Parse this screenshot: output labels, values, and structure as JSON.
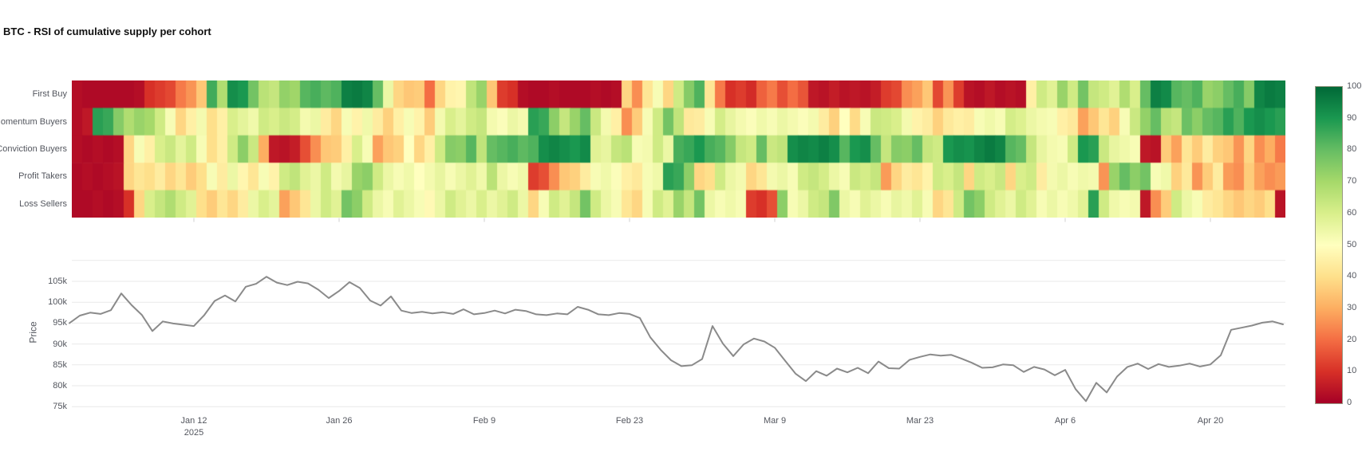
{
  "title": "BTC - RSI of cumulative supply per cohort",
  "colors": {
    "colormap_name": "RdYlGn",
    "colormap_stops": [
      "#a50026",
      "#d73027",
      "#f46d43",
      "#fdae61",
      "#fee08b",
      "#ffffbf",
      "#d9ef8b",
      "#a6d96a",
      "#66bd63",
      "#1a9850",
      "#006837"
    ],
    "price_line": "#8a8a8a",
    "gridline": "#e9e9e9",
    "axis_text": "#53565e",
    "title_text": "#111111"
  },
  "heatmap": {
    "cohorts": [
      "First Buy",
      "Momentum Buyers",
      "Conviction Buyers",
      "Profit Takers",
      "Loss Sellers"
    ]
  },
  "colorbar": {
    "min": 0,
    "max": 100,
    "tick_values": [
      100,
      90,
      80,
      70,
      60,
      50,
      40,
      30,
      20,
      10,
      0
    ]
  },
  "price_chart": {
    "ylabel": "Price",
    "y_tick_labels": [
      "105k",
      "100k",
      "95k",
      "90k",
      "85k",
      "80k",
      "75k"
    ]
  },
  "x_axis": {
    "tick_labels": [
      "Jan 12",
      "Jan 26",
      "Feb 9",
      "Feb 23",
      "Mar 9",
      "Mar 23",
      "Apr 6",
      "Apr 20"
    ],
    "year_label": "2025",
    "tick_days": [
      12,
      26,
      40,
      54,
      68,
      82,
      96,
      110
    ]
  },
  "chart_data": [
    {
      "type": "heatmap",
      "title": "RSI of cumulative supply per cohort",
      "rows": [
        "First Buy",
        "Momentum Buyers",
        "Conviction Buyers",
        "Profit Takers",
        "Loss Sellers"
      ],
      "n_columns": 117,
      "value_range": [
        0,
        100
      ],
      "x_tick_days": [
        12,
        26,
        40,
        54,
        68,
        82,
        96,
        110
      ],
      "x_tick_labels": [
        "Jan 12",
        "Jan 26",
        "Feb 9",
        "Feb 23",
        "Mar 9",
        "Mar 23",
        "Apr 6",
        "Apr 20"
      ],
      "values": [
        [
          3,
          2,
          2,
          2,
          2,
          2,
          3,
          10,
          12,
          14,
          22,
          26,
          35,
          85,
          68,
          92,
          90,
          78,
          66,
          64,
          73,
          71,
          82,
          84,
          81,
          83,
          95,
          96,
          94,
          80,
          55,
          38,
          35,
          36,
          20,
          38,
          46,
          47,
          65,
          72,
          35,
          12,
          10,
          3,
          2,
          2,
          3,
          2,
          2,
          2,
          3,
          2,
          3,
          38,
          25,
          42,
          52,
          38,
          62,
          75,
          83,
          42,
          22,
          10,
          12,
          9,
          18,
          22,
          15,
          20,
          16,
          5,
          4,
          6,
          4,
          5,
          4,
          6,
          12,
          14,
          25,
          28,
          35,
          14,
          26,
          12,
          4,
          3,
          5,
          3,
          4,
          3,
          45,
          62,
          58,
          72,
          62,
          78,
          64,
          62,
          58,
          68,
          60,
          80,
          95,
          93,
          82,
          80,
          83,
          72,
          74,
          80,
          84,
          75,
          94,
          96,
          95
        ],
        [
          3,
          5,
          88,
          86,
          75,
          68,
          72,
          70,
          62,
          52,
          38,
          45,
          53,
          40,
          45,
          60,
          57,
          54,
          62,
          60,
          63,
          61,
          53,
          55,
          44,
          38,
          52,
          46,
          54,
          44,
          37,
          45,
          52,
          46,
          36,
          53,
          60,
          57,
          62,
          64,
          53,
          51,
          55,
          53,
          88,
          86,
          74,
          64,
          72,
          80,
          63,
          53,
          45,
          25,
          36,
          52,
          62,
          78,
          65,
          43,
          44,
          52,
          61,
          56,
          53,
          51,
          54,
          52,
          55,
          53,
          51,
          53,
          44,
          37,
          50,
          39,
          52,
          63,
          62,
          60,
          53,
          46,
          44,
          37,
          43,
          45,
          44,
          52,
          54,
          52,
          61,
          59,
          55,
          53,
          52,
          45,
          43,
          28,
          35,
          42,
          37,
          52,
          63,
          73,
          80,
          66,
          64,
          79,
          74,
          80,
          82,
          88,
          83,
          90,
          92,
          90,
          88
        ],
        [
          3,
          2,
          3,
          2,
          3,
          38,
          52,
          45,
          60,
          63,
          57,
          62,
          52,
          40,
          45,
          62,
          74,
          63,
          30,
          5,
          4,
          6,
          15,
          25,
          35,
          36,
          45,
          60,
          52,
          28,
          35,
          37,
          50,
          38,
          45,
          62,
          75,
          74,
          82,
          65,
          80,
          82,
          84,
          81,
          83,
          92,
          94,
          92,
          90,
          93,
          58,
          56,
          64,
          66,
          52,
          53,
          62,
          55,
          84,
          86,
          90,
          84,
          82,
          75,
          64,
          62,
          80,
          63,
          65,
          92,
          94,
          93,
          95,
          92,
          82,
          90,
          92,
          80,
          64,
          75,
          74,
          80,
          64,
          62,
          90,
          92,
          91,
          94,
          96,
          94,
          82,
          80,
          64,
          56,
          53,
          52,
          62,
          90,
          88,
          63,
          56,
          54,
          52,
          5,
          4,
          36,
          28,
          42,
          36,
          44,
          37,
          35,
          26,
          38,
          25,
          30,
          22
        ],
        [
          2,
          3,
          2,
          3,
          4,
          38,
          42,
          40,
          44,
          38,
          42,
          36,
          40,
          52,
          44,
          55,
          47,
          42,
          52,
          46,
          62,
          65,
          58,
          55,
          62,
          53,
          56,
          72,
          74,
          62,
          55,
          52,
          54,
          50,
          53,
          56,
          52,
          55,
          58,
          54,
          66,
          55,
          52,
          54,
          12,
          15,
          25,
          35,
          37,
          44,
          52,
          54,
          51,
          45,
          43,
          52,
          54,
          88,
          86,
          74,
          38,
          40,
          62,
          55,
          53,
          38,
          42,
          53,
          55,
          52,
          62,
          64,
          61,
          55,
          52,
          63,
          61,
          64,
          27,
          38,
          44,
          42,
          46,
          62,
          60,
          64,
          38,
          62,
          60,
          63,
          38,
          60,
          62,
          44,
          53,
          55,
          52,
          54,
          53,
          26,
          72,
          80,
          74,
          78,
          52,
          54,
          37,
          43,
          26,
          36,
          44,
          27,
          25,
          36,
          28,
          25,
          27
        ],
        [
          2,
          2,
          3,
          2,
          3,
          10,
          38,
          60,
          64,
          68,
          62,
          58,
          40,
          36,
          42,
          38,
          44,
          55,
          60,
          57,
          28,
          35,
          42,
          55,
          62,
          58,
          78,
          74,
          62,
          55,
          52,
          58,
          55,
          52,
          48,
          55,
          62,
          58,
          55,
          60,
          55,
          58,
          62,
          55,
          38,
          52,
          62,
          58,
          64,
          78,
          62,
          55,
          52,
          42,
          38,
          52,
          62,
          58,
          72,
          64,
          78,
          55,
          52,
          54,
          52,
          12,
          10,
          15,
          74,
          52,
          55,
          62,
          64,
          76,
          55,
          52,
          58,
          55,
          52,
          56,
          54,
          58,
          52,
          38,
          42,
          62,
          78,
          74,
          62,
          58,
          55,
          62,
          58,
          52,
          55,
          52,
          54,
          58,
          88,
          62,
          54,
          52,
          53,
          5,
          25,
          36,
          62,
          55,
          52,
          44,
          42,
          38,
          35,
          38,
          36,
          40,
          4
        ]
      ]
    },
    {
      "type": "line",
      "name": "Price",
      "ylabel": "Price",
      "y_tick_labels": [
        "105k",
        "100k",
        "95k",
        "90k",
        "85k",
        "80k",
        "75k"
      ],
      "y_range_k": [
        73,
        110
      ],
      "x_tick_days": [
        12,
        26,
        40,
        54,
        68,
        82,
        96,
        110
      ],
      "x_tick_labels": [
        "Jan 12",
        "Jan 26",
        "Feb 9",
        "Feb 23",
        "Mar 9",
        "Mar 23",
        "Apr 6",
        "Apr 20"
      ],
      "first_point_day": 0,
      "values_k": [
        95.0,
        96.8,
        97.5,
        97.2,
        98.1,
        102.1,
        99.3,
        96.9,
        93.1,
        95.4,
        94.9,
        94.6,
        94.3,
        96.9,
        100.3,
        101.6,
        100.2,
        103.7,
        104.4,
        106.1,
        104.7,
        104.1,
        104.9,
        104.5,
        103.0,
        101.0,
        102.7,
        104.8,
        103.4,
        100.4,
        99.2,
        101.4,
        98.0,
        97.4,
        97.7,
        97.3,
        97.6,
        97.2,
        98.3,
        97.1,
        97.4,
        98.0,
        97.3,
        98.2,
        97.9,
        97.1,
        96.9,
        97.3,
        97.1,
        98.9,
        98.2,
        97.1,
        96.9,
        97.4,
        97.2,
        96.2,
        91.6,
        88.6,
        86.1,
        84.7,
        84.9,
        86.4,
        94.3,
        90.1,
        87.1,
        89.9,
        91.3,
        90.6,
        89.1,
        86.0,
        82.9,
        81.1,
        83.5,
        82.4,
        84.1,
        83.2,
        84.3,
        83.0,
        85.8,
        84.2,
        84.1,
        86.2,
        86.9,
        87.5,
        87.2,
        87.4,
        86.5,
        85.5,
        84.3,
        84.4,
        85.1,
        84.9,
        83.3,
        84.5,
        83.9,
        82.5,
        83.8,
        79.2,
        76.3,
        80.7,
        78.4,
        82.2,
        84.5,
        85.3,
        84.0,
        85.2,
        84.5,
        84.8,
        85.3,
        84.6,
        85.1,
        87.3,
        93.4,
        93.9,
        94.4,
        95.1,
        95.4,
        94.7
      ]
    }
  ]
}
